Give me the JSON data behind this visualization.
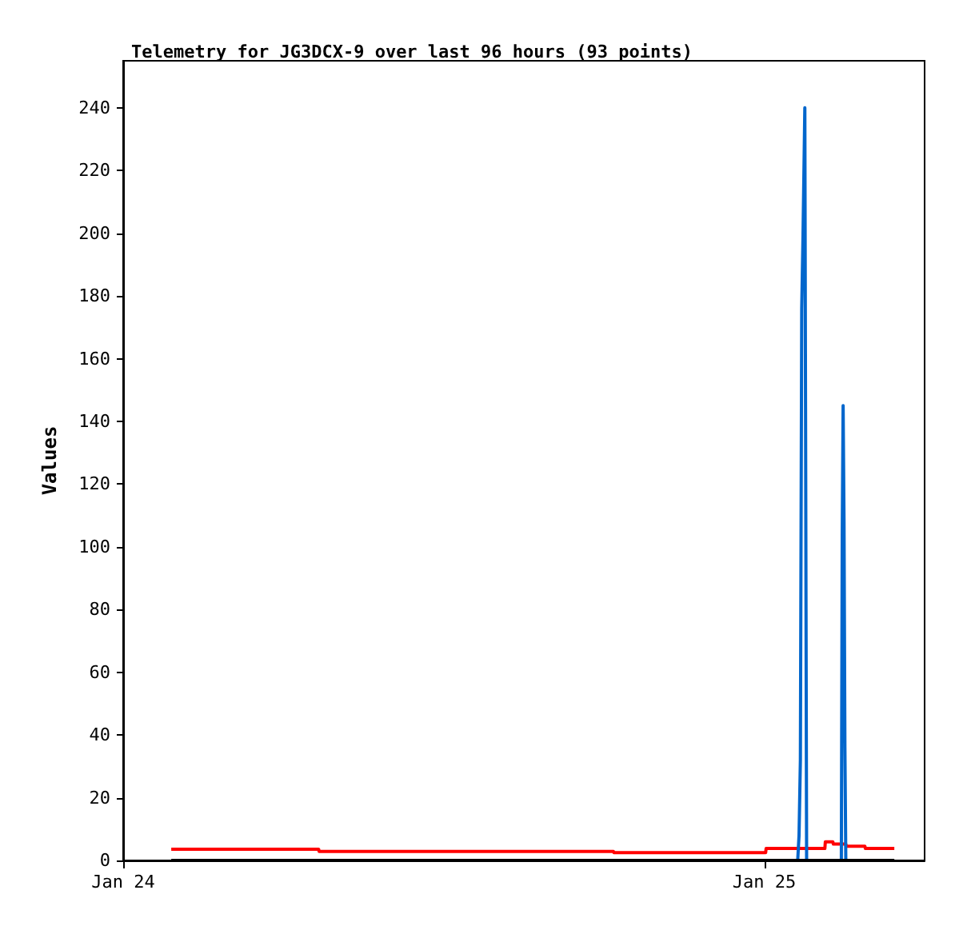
{
  "chart_data": {
    "type": "line",
    "title": "Telemetry for JG3DCX-9 over last 96 hours (93 points)",
    "ylabel": "Values",
    "xlim": [
      "--01-24T00:00",
      "--01-25T06:00"
    ],
    "ylim": [
      0,
      255
    ],
    "xticks": [
      {
        "value": "--01-24",
        "label": "Jan 24"
      },
      {
        "value": "--01-25",
        "label": "Jan 25"
      }
    ],
    "yticks": [
      0,
      20,
      40,
      60,
      80,
      100,
      120,
      140,
      160,
      180,
      200,
      220,
      240
    ],
    "marker": "none",
    "line_style": "solid",
    "series": [
      {
        "color": "#ff0000",
        "x": [
          "--01-24T01:48",
          "--01-24T07:19",
          "--01-24T07:20",
          "--01-24T18:21",
          "--01-24T18:22",
          "--01-25T00:03",
          "--01-25T00:04",
          "--01-25T02:16",
          "--01-25T02:17",
          "--01-25T02:34",
          "--01-25T02:35",
          "--01-25T03:03",
          "--01-25T03:04",
          "--01-25T03:46",
          "--01-25T03:47",
          "--01-25T04:52"
        ],
        "values": [
          3.6,
          3.6,
          2.9,
          2.9,
          2.5,
          2.5,
          3.8,
          3.8,
          5.9,
          5.9,
          5.2,
          5.2,
          4.5,
          4.5,
          3.8,
          3.8
        ]
      },
      {
        "color": "#0066cc",
        "x": [
          "--01-25T01:15",
          "--01-25T01:18",
          "--01-25T01:21",
          "--01-25T01:24",
          "--01-25T01:27",
          "--01-25T01:31",
          "--01-25T01:35",
          "--01-25T02:53",
          "--01-25T02:55",
          "--01-25T02:57",
          "--01-25T02:59",
          "--01-25T03:01",
          "--01-25T03:03"
        ],
        "values": [
          0,
          8,
          32,
          176,
          200,
          240,
          0,
          0,
          104,
          145,
          108,
          36,
          0
        ]
      },
      {
        "color": "#000000",
        "x": [
          "--01-24T01:48",
          "--01-25T04:52"
        ],
        "values": [
          0,
          0
        ]
      }
    ]
  }
}
